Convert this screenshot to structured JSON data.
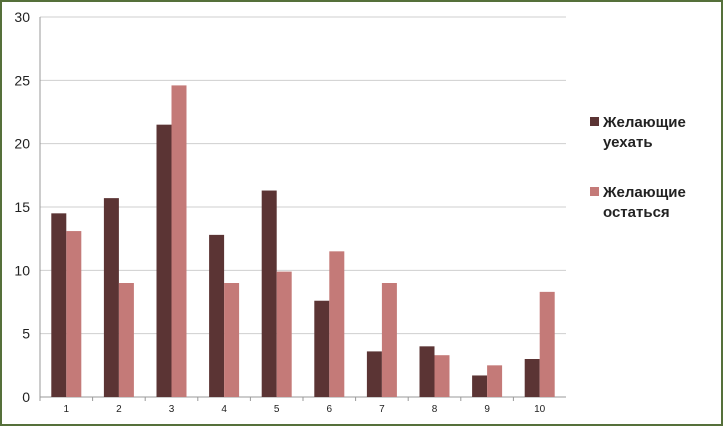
{
  "chart_data": {
    "type": "bar",
    "title": "",
    "xlabel": "",
    "ylabel": "",
    "categories": [
      "1",
      "2",
      "3",
      "4",
      "5",
      "6",
      "7",
      "8",
      "9",
      "10"
    ],
    "ylim": [
      0,
      30
    ],
    "yticks": [
      0,
      5,
      10,
      15,
      20,
      25,
      30
    ],
    "grid": true,
    "legend_position": "right",
    "series": [
      {
        "name": "Желающие уехать",
        "color": "#5b3434",
        "values": [
          14.5,
          15.7,
          21.5,
          12.8,
          16.3,
          7.6,
          3.6,
          4.0,
          1.7,
          3.0
        ]
      },
      {
        "name": "Желающие остаться",
        "color": "#c47a78",
        "values": [
          13.1,
          9.0,
          24.6,
          9.0,
          9.9,
          11.5,
          9.0,
          3.3,
          2.5,
          8.3
        ]
      }
    ]
  }
}
